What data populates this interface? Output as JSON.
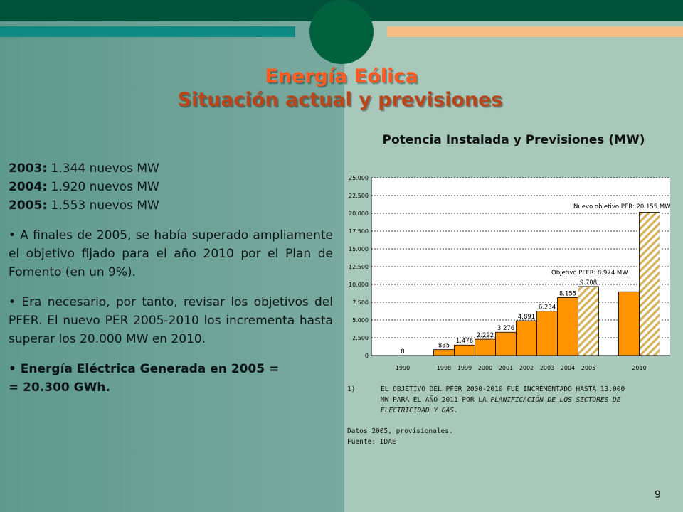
{
  "title": {
    "line1": "Energía Eólica",
    "line2": "Situación actual y previsiones"
  },
  "left": {
    "years": [
      {
        "year": "2003:",
        "text": " 1.344 nuevos MW"
      },
      {
        "year": "2004:",
        "text": " 1.920 nuevos MW"
      },
      {
        "year": "2005:",
        "text": " 1.553 nuevos MW"
      }
    ],
    "bullet1": "A finales de 2005, se había superado ampliamente el objetivo fijado para el año 2010 por el Plan de Fomento (en un 9%).",
    "bullet2": "Era necesario, por tanto, revisar los objetivos del PFER. El nuevo PER 2005-2010 los incrementa hasta superar los 20.000 MW en 2010.",
    "bullet3_line1": "Energía Eléctrica Generada en 2005 =",
    "bullet3_line2": "= 20.300 GWh."
  },
  "chart_title": "Potencia Instalada y Previsiones (MW)",
  "chart_data": {
    "type": "bar",
    "title": "Potencia Instalada y Previsiones (MW)",
    "categories": [
      "1990",
      "1998",
      "1999",
      "2000",
      "2001",
      "2002",
      "2003",
      "2004",
      "2005",
      "2010",
      "2010"
    ],
    "values": [
      8,
      835,
      1476,
      2292,
      3276,
      4891,
      6234,
      8155,
      9708,
      8974,
      20155
    ],
    "value_labels": [
      "8",
      "835",
      "1.476",
      "2.292",
      "3.276",
      "4.891",
      "6.234",
      "8.155",
      "9.708",
      "",
      ""
    ],
    "hatched": [
      false,
      false,
      false,
      false,
      false,
      false,
      false,
      false,
      true,
      false,
      true
    ],
    "ylim": [
      0,
      25000
    ],
    "yticks": [
      "0",
      "2.500",
      "5.000",
      "7.500",
      "10.000",
      "12.500",
      "15.000",
      "17.500",
      "20.000",
      "22.500",
      "25.000"
    ],
    "grid": true,
    "annotations": [
      "Nuevo objetivo PER: 20.155 MW",
      "Objetivo PFER: 8.974 MW"
    ],
    "colors": {
      "bar": "#ff9400",
      "hatch_stripe": "#d4b15a",
      "hatch_bg": "#ffffff",
      "grid": "#000000"
    }
  },
  "notes": {
    "number": "1)",
    "line1": "EL OBJETIVO DEL PFER 2000-2010 FUE INCREMENTADO HASTA 13.000",
    "line2_plain": "MW PARA EL AÑO 2011 POR LA ",
    "line2_italic": "PLANIFICACIÓN DE LOS SECTORES DE",
    "line3_italic": "ELECTRICIDAD Y GAS",
    "line3_end": ".",
    "datos": "Datos 2005, provisionales.",
    "fuente": "Fuente: IDAE"
  },
  "page_number": "9"
}
